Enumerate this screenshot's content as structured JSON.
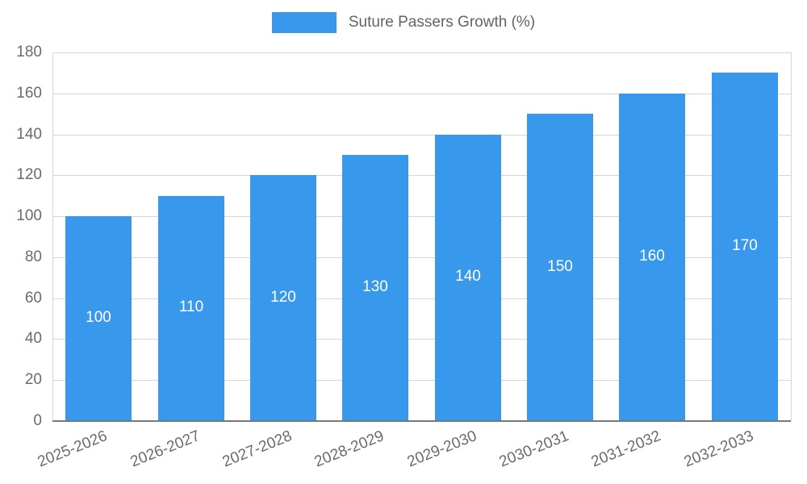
{
  "chart_data": {
    "type": "bar",
    "title": "Suture Passers Growth (%)",
    "categories": [
      "2025-2026",
      "2026-2027",
      "2027-2028",
      "2028-2029",
      "2029-2030",
      "2030-2031",
      "2031-2032",
      "2032-2033"
    ],
    "values": [
      100,
      110,
      120,
      130,
      140,
      150,
      160,
      170
    ],
    "series_name": "Suture Passers Growth (%)",
    "xlabel": "",
    "ylabel": "",
    "ylim": [
      0,
      180
    ],
    "ytick_step": 20,
    "yticks": [
      0,
      20,
      40,
      60,
      80,
      100,
      120,
      140,
      160,
      180
    ],
    "grid": true,
    "legend_position": "top",
    "bar_color": "#3898ec",
    "bar_label_color": "#ffffff",
    "axis_text_color": "#6b6b6b",
    "gridline_color": "#d6d6d6"
  }
}
